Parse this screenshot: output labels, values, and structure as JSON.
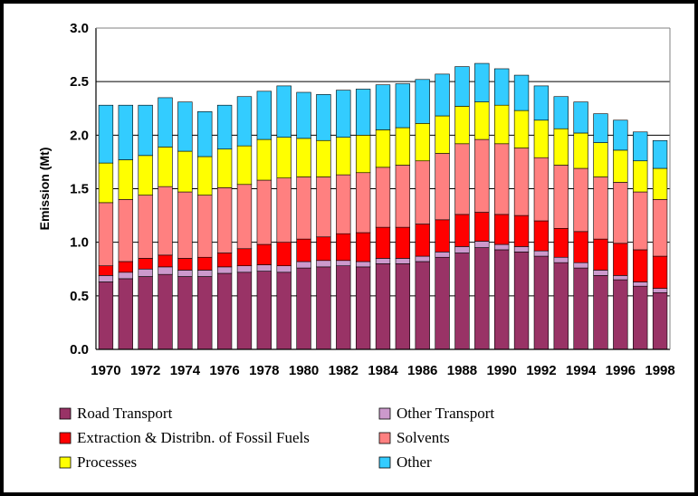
{
  "chart_data": {
    "type": "bar",
    "stacked": true,
    "title": "",
    "xlabel": "",
    "ylabel": "Emission (Mt)",
    "ylim": [
      0,
      3.0
    ],
    "yticks": [
      "0.0",
      "0.5",
      "1.0",
      "1.5",
      "2.0",
      "2.5",
      "3.0"
    ],
    "grid": "horizontal",
    "legend_position": "bottom",
    "categories": [
      "1970",
      "1971",
      "1972",
      "1973",
      "1974",
      "1975",
      "1976",
      "1977",
      "1978",
      "1979",
      "1980",
      "1981",
      "1982",
      "1983",
      "1984",
      "1985",
      "1986",
      "1987",
      "1988",
      "1989",
      "1990",
      "1991",
      "1992",
      "1993",
      "1994",
      "1995",
      "1996",
      "1997",
      "1998"
    ],
    "xtick_labels": [
      "1970",
      "1972",
      "1974",
      "1976",
      "1978",
      "1980",
      "1982",
      "1984",
      "1986",
      "1988",
      "1990",
      "1992",
      "1994",
      "1996",
      "1998"
    ],
    "series": [
      {
        "name": "Road Transport",
        "color": "#993366",
        "values": [
          0.63,
          0.66,
          0.68,
          0.7,
          0.68,
          0.68,
          0.71,
          0.72,
          0.73,
          0.72,
          0.76,
          0.77,
          0.78,
          0.77,
          0.8,
          0.8,
          0.82,
          0.86,
          0.9,
          0.95,
          0.93,
          0.91,
          0.87,
          0.81,
          0.76,
          0.69,
          0.65,
          0.59,
          0.53
        ]
      },
      {
        "name": "Other Transport",
        "color": "#CC99CC",
        "values": [
          0.06,
          0.06,
          0.07,
          0.07,
          0.06,
          0.06,
          0.06,
          0.06,
          0.06,
          0.06,
          0.06,
          0.06,
          0.05,
          0.05,
          0.05,
          0.05,
          0.05,
          0.05,
          0.06,
          0.06,
          0.05,
          0.05,
          0.05,
          0.05,
          0.05,
          0.05,
          0.04,
          0.04,
          0.04
        ]
      },
      {
        "name": "Extraction & Distribn. of Fossil Fuels",
        "color": "#FF0000",
        "values": [
          0.09,
          0.1,
          0.1,
          0.11,
          0.11,
          0.12,
          0.13,
          0.16,
          0.19,
          0.22,
          0.21,
          0.22,
          0.25,
          0.27,
          0.29,
          0.29,
          0.3,
          0.3,
          0.3,
          0.27,
          0.28,
          0.29,
          0.28,
          0.27,
          0.29,
          0.29,
          0.3,
          0.3,
          0.3
        ]
      },
      {
        "name": "Solvents",
        "color": "#FF8080",
        "values": [
          0.59,
          0.58,
          0.59,
          0.64,
          0.62,
          0.58,
          0.61,
          0.6,
          0.6,
          0.6,
          0.58,
          0.56,
          0.55,
          0.56,
          0.56,
          0.58,
          0.59,
          0.62,
          0.66,
          0.68,
          0.66,
          0.63,
          0.59,
          0.59,
          0.59,
          0.58,
          0.57,
          0.54,
          0.53
        ]
      },
      {
        "name": "Processes",
        "color": "#FFFF00",
        "values": [
          0.37,
          0.37,
          0.37,
          0.37,
          0.38,
          0.36,
          0.36,
          0.36,
          0.38,
          0.38,
          0.36,
          0.34,
          0.35,
          0.35,
          0.35,
          0.35,
          0.35,
          0.35,
          0.35,
          0.35,
          0.36,
          0.35,
          0.35,
          0.34,
          0.33,
          0.32,
          0.3,
          0.29,
          0.29
        ]
      },
      {
        "name": "Other",
        "color": "#33CCFF",
        "values": [
          0.54,
          0.51,
          0.47,
          0.46,
          0.46,
          0.42,
          0.41,
          0.46,
          0.45,
          0.48,
          0.43,
          0.43,
          0.44,
          0.43,
          0.42,
          0.41,
          0.41,
          0.39,
          0.37,
          0.36,
          0.34,
          0.33,
          0.32,
          0.3,
          0.29,
          0.27,
          0.28,
          0.27,
          0.26
        ]
      }
    ]
  }
}
